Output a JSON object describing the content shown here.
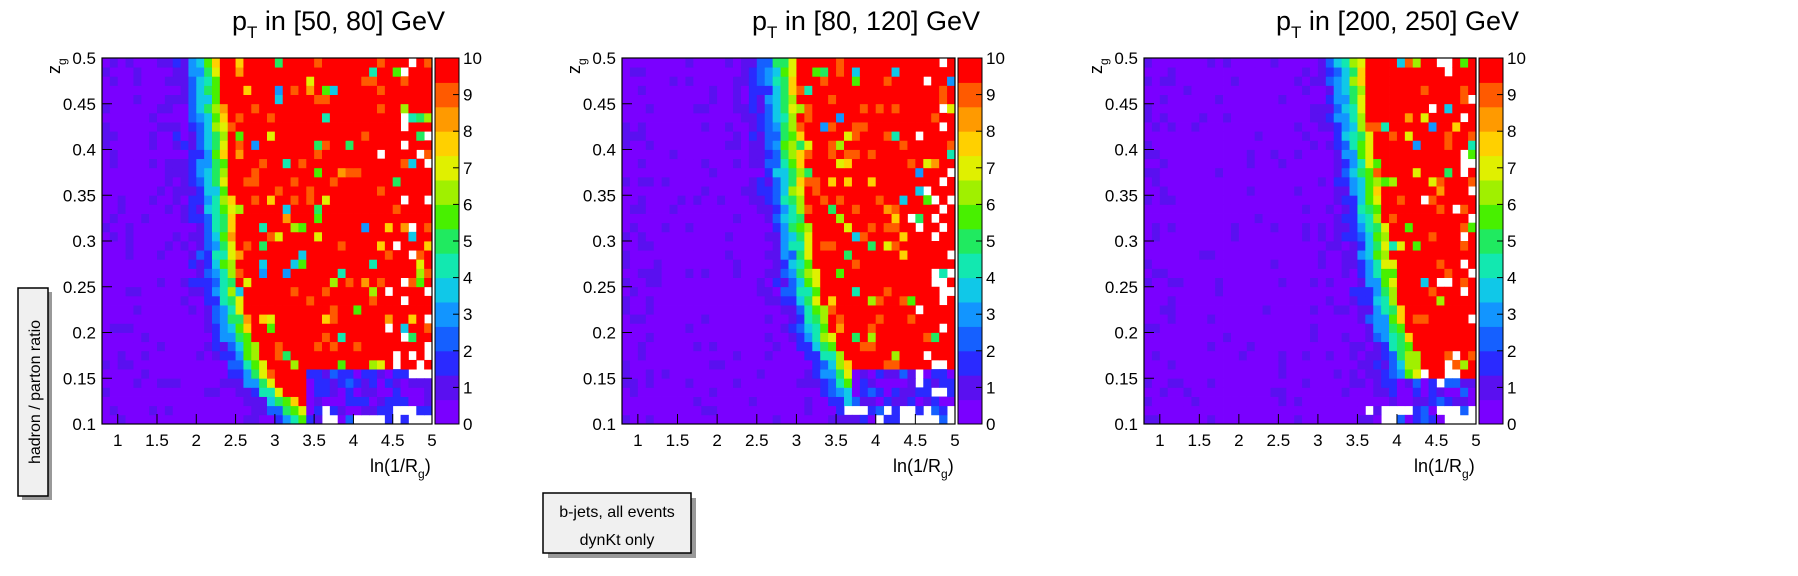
{
  "figure": {
    "ylabel_box": "hadron / parton ratio",
    "note_line1": "b-jets, all events",
    "note_line2": "dynKt only",
    "x_axis_label_main": "ln(1/R",
    "x_axis_label_sub": "g",
    "x_axis_label_close": ")",
    "y_axis_label_main": "z",
    "y_axis_label_sub": "g"
  },
  "chart_data": [
    {
      "type": "heatmap",
      "title_main": "p",
      "title_sub": "T",
      "title_rest": " in [50, 80] GeV",
      "x_bin_range": [
        0.8,
        5.0
      ],
      "y_bin_range": [
        0.1,
        0.5
      ],
      "x_bins": 42,
      "y_bins": 40,
      "xlim": [
        0.8,
        5.0
      ],
      "ylim": [
        0.1,
        0.5
      ],
      "zlim": [
        0,
        10
      ],
      "x_ticks": [
        "1",
        "1.5",
        "2",
        "2.5",
        "3",
        "3.5",
        "4",
        "4.5",
        "5"
      ],
      "x_tick_values": [
        1,
        1.5,
        2,
        2.5,
        3,
        3.5,
        4,
        4.5,
        5
      ],
      "y_ticks": [
        "0.1",
        "0.15",
        "0.2",
        "0.25",
        "0.3",
        "0.35",
        "0.4",
        "0.45",
        "0.5"
      ],
      "y_tick_values": [
        0.1,
        0.15,
        0.2,
        0.25,
        0.3,
        0.35,
        0.4,
        0.45,
        0.5
      ],
      "z_ticks": [
        "0",
        "1",
        "2",
        "3",
        "4",
        "5",
        "6",
        "7",
        "8",
        "9",
        "10"
      ],
      "edge": [
        [
          0.1,
          3.4
        ],
        [
          0.15,
          2.8
        ],
        [
          0.2,
          2.55
        ],
        [
          0.25,
          2.4
        ],
        [
          0.3,
          2.35
        ],
        [
          0.35,
          2.3
        ],
        [
          0.4,
          2.25
        ],
        [
          0.45,
          2.2
        ],
        [
          0.5,
          2.15
        ]
      ],
      "low_region": {
        "zg_max": 0.16,
        "x_min": 3.4,
        "value": 1.5
      }
    },
    {
      "type": "heatmap",
      "title_main": "p",
      "title_sub": "T",
      "title_rest": " in [80, 120] GeV",
      "x_bin_range": [
        0.8,
        5.0
      ],
      "y_bin_range": [
        0.1,
        0.5
      ],
      "x_bins": 42,
      "y_bins": 40,
      "xlim": [
        0.8,
        5.0
      ],
      "ylim": [
        0.1,
        0.5
      ],
      "zlim": [
        0,
        10
      ],
      "x_ticks": [
        "1",
        "1.5",
        "2",
        "2.5",
        "3",
        "3.5",
        "4",
        "4.5",
        "5"
      ],
      "x_tick_values": [
        1,
        1.5,
        2,
        2.5,
        3,
        3.5,
        4,
        4.5,
        5
      ],
      "y_ticks": [
        "0.1",
        "0.15",
        "0.2",
        "0.25",
        "0.3",
        "0.35",
        "0.4",
        "0.45",
        "0.5"
      ],
      "y_tick_values": [
        0.1,
        0.15,
        0.2,
        0.25,
        0.3,
        0.35,
        0.4,
        0.45,
        0.5
      ],
      "z_ticks": [
        "0",
        "1",
        "2",
        "3",
        "4",
        "5",
        "6",
        "7",
        "8",
        "9",
        "10"
      ],
      "edge": [
        [
          0.1,
          4.0
        ],
        [
          0.15,
          3.6
        ],
        [
          0.2,
          3.3
        ],
        [
          0.25,
          3.15
        ],
        [
          0.3,
          3.05
        ],
        [
          0.35,
          2.95
        ],
        [
          0.4,
          2.9
        ],
        [
          0.45,
          2.85
        ],
        [
          0.5,
          2.8
        ]
      ],
      "low_region": {
        "zg_max": 0.16,
        "x_min": 3.7,
        "value": 1.5
      }
    },
    {
      "type": "heatmap",
      "title_main": "p",
      "title_sub": "T",
      "title_rest": " in [200, 250] GeV",
      "x_bin_range": [
        0.8,
        5.0
      ],
      "y_bin_range": [
        0.1,
        0.5
      ],
      "x_bins": 42,
      "y_bins": 40,
      "xlim": [
        0.8,
        5.0
      ],
      "ylim": [
        0.1,
        0.5
      ],
      "zlim": [
        0,
        10
      ],
      "x_ticks": [
        "1",
        "1.5",
        "2",
        "2.5",
        "3",
        "3.5",
        "4",
        "4.5",
        "5"
      ],
      "x_tick_values": [
        1,
        1.5,
        2,
        2.5,
        3,
        3.5,
        4,
        4.5,
        5
      ],
      "y_ticks": [
        "0.1",
        "0.15",
        "0.2",
        "0.25",
        "0.3",
        "0.35",
        "0.4",
        "0.45",
        "0.5"
      ],
      "y_tick_values": [
        0.1,
        0.15,
        0.2,
        0.25,
        0.3,
        0.35,
        0.4,
        0.45,
        0.5
      ],
      "z_ticks": [
        "0",
        "1",
        "2",
        "3",
        "4",
        "5",
        "6",
        "7",
        "8",
        "9",
        "10"
      ],
      "edge": [
        [
          0.1,
          4.6
        ],
        [
          0.15,
          4.2
        ],
        [
          0.2,
          4.0
        ],
        [
          0.25,
          3.85
        ],
        [
          0.3,
          3.75
        ],
        [
          0.35,
          3.65
        ],
        [
          0.4,
          3.55
        ],
        [
          0.45,
          3.45
        ],
        [
          0.5,
          3.4
        ]
      ],
      "low_region": {
        "zg_max": 0.15,
        "x_min": 4.0,
        "value": 1.8
      }
    }
  ],
  "palette": [
    "#7a00ff",
    "#5a10f0",
    "#2a2aff",
    "#1560ff",
    "#1295ff",
    "#10c8e8",
    "#12e8b0",
    "#20ea60",
    "#48f000",
    "#a0f000",
    "#e0f000",
    "#ffd000",
    "#ff9a00",
    "#ff5a00",
    "#ff0000"
  ]
}
